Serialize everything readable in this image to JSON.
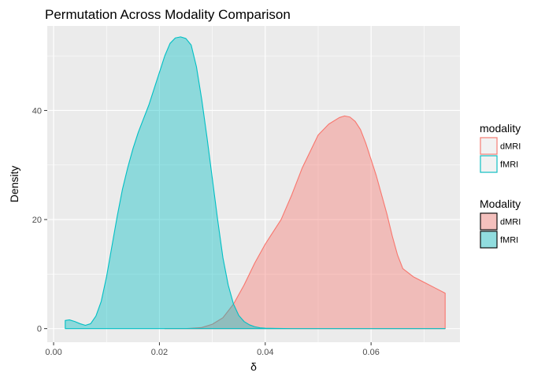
{
  "chart_data": {
    "type": "area",
    "title": "Permutation Across Modality Comparison",
    "xlabel": "δ",
    "ylabel": "Density",
    "xlim": [
      -0.0012,
      0.0768
    ],
    "ylim": [
      -2.5,
      55.5
    ],
    "x_ticks": [
      {
        "value": 0.0,
        "label": "0.00"
      },
      {
        "value": 0.02,
        "label": "0.02"
      },
      {
        "value": 0.04,
        "label": "0.04"
      },
      {
        "value": 0.06,
        "label": "0.06"
      }
    ],
    "y_ticks": [
      {
        "value": 0,
        "label": "0"
      },
      {
        "value": 20,
        "label": "20"
      },
      {
        "value": 40,
        "label": "40"
      }
    ],
    "grid": true,
    "legend_position": "right",
    "legends": [
      {
        "title": "modality",
        "style": "outline",
        "entries": [
          {
            "label": "dMRI",
            "color": "#f8766d"
          },
          {
            "label": "fMRI",
            "color": "#00bfc4"
          }
        ]
      },
      {
        "title": "Modality",
        "style": "filled",
        "entries": [
          {
            "label": "dMRI",
            "color": "#f8766d"
          },
          {
            "label": "fMRI",
            "color": "#00bfc4"
          }
        ]
      }
    ],
    "series": [
      {
        "name": "dMRI",
        "color": "#f8766d",
        "fill_opacity": 0.4,
        "x": [
          0.021,
          0.025,
          0.028,
          0.03,
          0.032,
          0.034,
          0.036,
          0.038,
          0.04,
          0.041,
          0.043,
          0.045,
          0.047,
          0.049,
          0.05,
          0.052,
          0.054,
          0.055,
          0.056,
          0.057,
          0.058,
          0.059,
          0.06,
          0.061,
          0.062,
          0.063,
          0.064,
          0.065,
          0.066,
          0.068,
          0.07,
          0.072,
          0.074,
          0.074
        ],
        "y": [
          0,
          0,
          0.2,
          0.8,
          2,
          4.5,
          8,
          12,
          15.5,
          17,
          20,
          24.5,
          29.5,
          33.5,
          35.5,
          37.5,
          38.7,
          39,
          38.8,
          38,
          36.5,
          34,
          31,
          28,
          24.5,
          21,
          17,
          13.5,
          11,
          9.5,
          8.5,
          7.5,
          6.5,
          0
        ]
      },
      {
        "name": "fMRI",
        "color": "#00bfc4",
        "fill_opacity": 0.4,
        "x": [
          0.0022,
          0.0022,
          0.003,
          0.004,
          0.005,
          0.006,
          0.007,
          0.008,
          0.009,
          0.01,
          0.011,
          0.012,
          0.013,
          0.014,
          0.015,
          0.016,
          0.017,
          0.018,
          0.019,
          0.02,
          0.021,
          0.022,
          0.023,
          0.024,
          0.025,
          0.026,
          0.027,
          0.028,
          0.029,
          0.03,
          0.031,
          0.032,
          0.033,
          0.034,
          0.035,
          0.036,
          0.037,
          0.038,
          0.039,
          0.04,
          0.042,
          0.045,
          0.05,
          0.06,
          0.074
        ],
        "y": [
          0,
          1.5,
          1.6,
          1.3,
          0.9,
          0.6,
          0.9,
          2.3,
          5,
          9.5,
          15,
          20.5,
          25.5,
          29.5,
          33,
          36,
          38.5,
          41,
          44,
          47,
          50,
          52.3,
          53.3,
          53.5,
          53.2,
          52,
          48,
          42,
          35,
          27.5,
          20,
          13,
          8,
          4.5,
          2.4,
          1.3,
          0.7,
          0.35,
          0.15,
          0.08,
          0.03,
          0,
          0,
          0,
          0
        ]
      }
    ]
  }
}
